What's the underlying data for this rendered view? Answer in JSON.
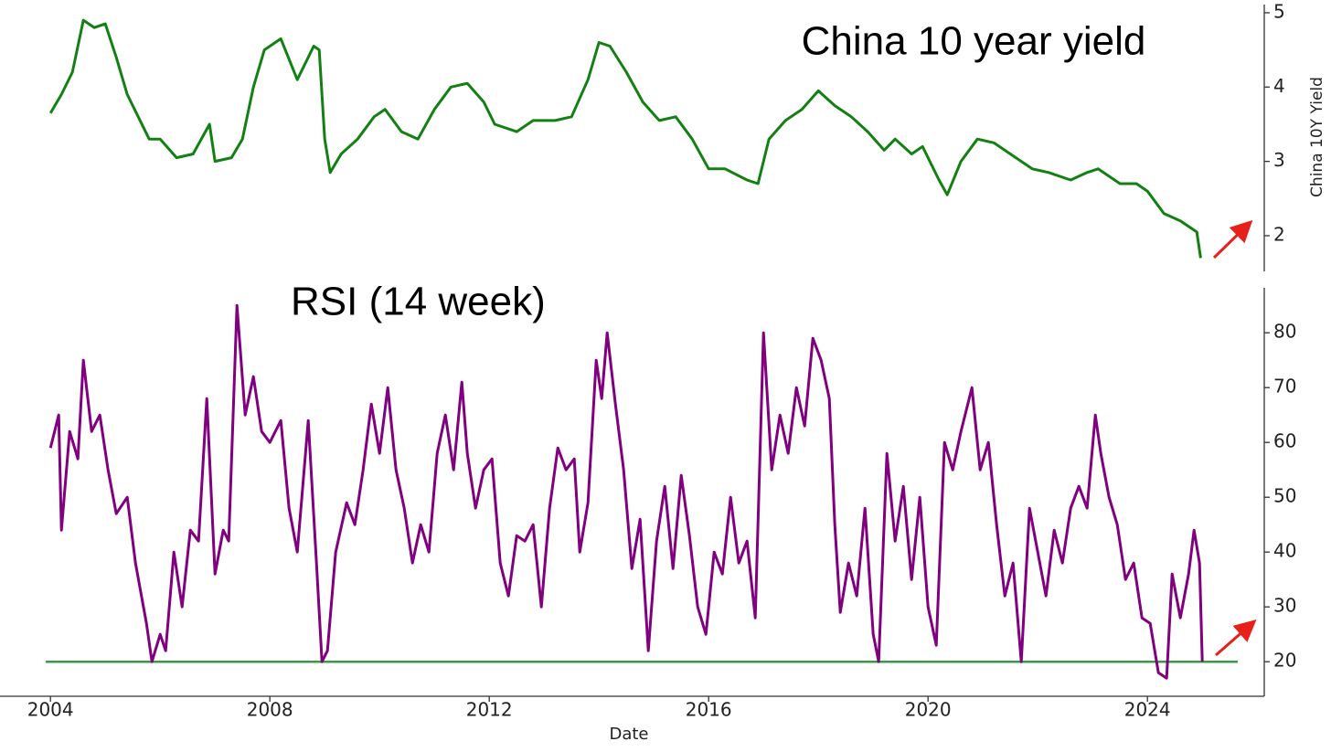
{
  "chart_data": [
    {
      "type": "line",
      "title": "China 10 year yield",
      "ylabel": "China 10Y Yield",
      "color": "#138013",
      "xlim": [
        2003.08,
        2026.13
      ],
      "ylim": [
        1.52,
        5.11
      ],
      "yticks": [
        2,
        3,
        4,
        5
      ],
      "x": [
        2004.0,
        2004.2,
        2004.4,
        2004.6,
        2004.8,
        2005.0,
        2005.2,
        2005.4,
        2005.6,
        2005.8,
        2006.0,
        2006.3,
        2006.6,
        2006.9,
        2007.0,
        2007.3,
        2007.5,
        2007.7,
        2007.9,
        2008.2,
        2008.5,
        2008.8,
        2008.9,
        2009.0,
        2009.1,
        2009.3,
        2009.6,
        2009.9,
        2010.1,
        2010.4,
        2010.7,
        2011.0,
        2011.3,
        2011.6,
        2011.9,
        2012.1,
        2012.5,
        2012.8,
        2013.2,
        2013.5,
        2013.8,
        2014.0,
        2014.2,
        2014.5,
        2014.8,
        2015.1,
        2015.4,
        2015.7,
        2016.0,
        2016.3,
        2016.7,
        2016.9,
        2017.1,
        2017.4,
        2017.7,
        2018.0,
        2018.3,
        2018.6,
        2018.9,
        2019.2,
        2019.4,
        2019.7,
        2019.9,
        2020.2,
        2020.35,
        2020.6,
        2020.9,
        2021.2,
        2021.5,
        2021.9,
        2022.2,
        2022.6,
        2022.9,
        2023.1,
        2023.5,
        2023.8,
        2024.0,
        2024.3,
        2024.6,
        2024.9,
        2024.97
      ],
      "values": [
        3.65,
        3.9,
        4.2,
        4.9,
        4.8,
        4.85,
        4.4,
        3.9,
        3.6,
        3.3,
        3.3,
        3.05,
        3.1,
        3.5,
        3.0,
        3.05,
        3.3,
        4.0,
        4.5,
        4.65,
        4.1,
        4.55,
        4.5,
        3.3,
        2.85,
        3.1,
        3.3,
        3.6,
        3.7,
        3.4,
        3.3,
        3.7,
        4.0,
        4.05,
        3.8,
        3.5,
        3.4,
        3.55,
        3.55,
        3.6,
        4.1,
        4.6,
        4.55,
        4.2,
        3.8,
        3.55,
        3.6,
        3.3,
        2.9,
        2.9,
        2.75,
        2.7,
        3.3,
        3.55,
        3.7,
        3.95,
        3.75,
        3.6,
        3.4,
        3.15,
        3.3,
        3.1,
        3.2,
        2.75,
        2.55,
        3.0,
        3.3,
        3.25,
        3.1,
        2.9,
        2.85,
        2.75,
        2.85,
        2.9,
        2.7,
        2.7,
        2.6,
        2.3,
        2.2,
        2.05,
        1.7
      ]
    },
    {
      "type": "line",
      "title": "RSI (14 week)",
      "xlabel": "Date",
      "color": "#800080",
      "xlim": [
        2003.08,
        2026.13
      ],
      "ylim": [
        13.7,
        88.2
      ],
      "yticks": [
        20,
        30,
        40,
        50,
        60,
        70,
        80
      ],
      "xticks": [
        2004,
        2008,
        2012,
        2016,
        2020,
        2024
      ],
      "hline": {
        "value": 20,
        "color": "#3a9a4a"
      },
      "x": [
        2004.0,
        2004.15,
        2004.2,
        2004.35,
        2004.5,
        2004.6,
        2004.75,
        2004.9,
        2005.05,
        2005.2,
        2005.4,
        2005.55,
        2005.75,
        2005.85,
        2006.0,
        2006.1,
        2006.25,
        2006.4,
        2006.55,
        2006.7,
        2006.85,
        2007.0,
        2007.15,
        2007.25,
        2007.4,
        2007.55,
        2007.7,
        2007.85,
        2008.0,
        2008.2,
        2008.35,
        2008.5,
        2008.7,
        2008.85,
        2008.95,
        2009.05,
        2009.2,
        2009.4,
        2009.55,
        2009.7,
        2009.85,
        2010.0,
        2010.15,
        2010.3,
        2010.45,
        2010.6,
        2010.75,
        2010.9,
        2011.05,
        2011.2,
        2011.35,
        2011.5,
        2011.6,
        2011.75,
        2011.9,
        2012.05,
        2012.2,
        2012.35,
        2012.5,
        2012.65,
        2012.8,
        2012.95,
        2013.1,
        2013.25,
        2013.4,
        2013.55,
        2013.65,
        2013.8,
        2013.95,
        2014.05,
        2014.15,
        2014.3,
        2014.45,
        2014.6,
        2014.75,
        2014.9,
        2015.05,
        2015.2,
        2015.35,
        2015.5,
        2015.65,
        2015.8,
        2015.95,
        2016.1,
        2016.25,
        2016.4,
        2016.55,
        2016.7,
        2016.85,
        2017.0,
        2017.15,
        2017.3,
        2017.45,
        2017.6,
        2017.75,
        2017.9,
        2018.05,
        2018.2,
        2018.3,
        2018.4,
        2018.55,
        2018.7,
        2018.85,
        2019.0,
        2019.1,
        2019.25,
        2019.4,
        2019.55,
        2019.7,
        2019.85,
        2020.0,
        2020.15,
        2020.3,
        2020.45,
        2020.6,
        2020.8,
        2020.95,
        2021.1,
        2021.25,
        2021.4,
        2021.55,
        2021.7,
        2021.85,
        2022.0,
        2022.15,
        2022.3,
        2022.45,
        2022.6,
        2022.75,
        2022.9,
        2023.05,
        2023.15,
        2023.3,
        2023.45,
        2023.6,
        2023.75,
        2023.9,
        2024.05,
        2024.2,
        2024.35,
        2024.45,
        2024.6,
        2024.75,
        2024.85,
        2024.95,
        2025.0
      ],
      "values": [
        59,
        65,
        44,
        62,
        57,
        75,
        62,
        65,
        55,
        47,
        50,
        38,
        27,
        20,
        25,
        22,
        40,
        30,
        44,
        42,
        68,
        36,
        44,
        42,
        85,
        65,
        72,
        62,
        60,
        64,
        48,
        40,
        64,
        38,
        20,
        22,
        40,
        49,
        45,
        55,
        67,
        58,
        70,
        55,
        48,
        38,
        45,
        40,
        58,
        65,
        55,
        71,
        58,
        48,
        55,
        57,
        38,
        32,
        43,
        42,
        45,
        30,
        48,
        59,
        55,
        57,
        40,
        49,
        75,
        68,
        80,
        67,
        55,
        37,
        46,
        22,
        42,
        52,
        37,
        54,
        43,
        30,
        25,
        40,
        36,
        50,
        38,
        42,
        28,
        80,
        55,
        65,
        58,
        70,
        63,
        79,
        75,
        68,
        45,
        29,
        38,
        32,
        48,
        25,
        20,
        58,
        42,
        52,
        35,
        50,
        30,
        23,
        60,
        55,
        62,
        70,
        55,
        60,
        45,
        32,
        38,
        20,
        48,
        40,
        32,
        44,
        38,
        48,
        52,
        48,
        65,
        58,
        50,
        45,
        35,
        38,
        28,
        27,
        18,
        17,
        36,
        28,
        36,
        44,
        38,
        20
      ]
    }
  ]
}
